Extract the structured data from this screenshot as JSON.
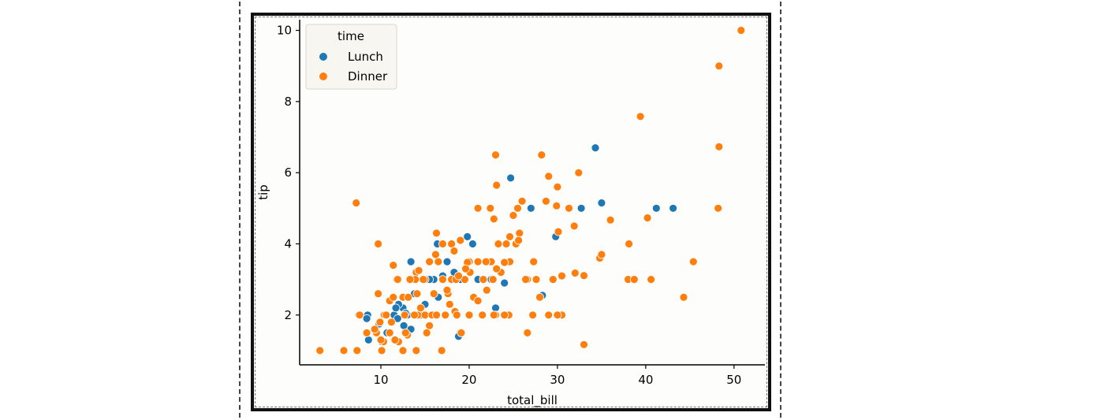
{
  "chart_data": {
    "type": "scatter",
    "xlabel": "total_bill",
    "ylabel": "tip",
    "xlim": [
      0.8,
      53.5
    ],
    "ylim": [
      0.6,
      10.3
    ],
    "xticks": [
      "10",
      "20",
      "30",
      "40",
      "50"
    ],
    "yticks": [
      "2",
      "4",
      "6",
      "8",
      "10"
    ],
    "grid": false,
    "legend": {
      "title": "time",
      "placement": "top-left",
      "entries": [
        "Lunch",
        "Dinner"
      ]
    },
    "series": [
      {
        "name": "Lunch",
        "color": "#1f77b4",
        "points": [
          [
            34.3,
            6.7
          ],
          [
            24.7,
            5.85
          ],
          [
            27.0,
            5.0
          ],
          [
            32.7,
            5.0
          ],
          [
            35.0,
            5.15
          ],
          [
            41.2,
            5.0
          ],
          [
            43.1,
            5.0
          ],
          [
            29.8,
            4.2
          ],
          [
            19.8,
            4.2
          ],
          [
            20.4,
            4.0
          ],
          [
            16.4,
            4.0
          ],
          [
            18.0,
            4.0
          ],
          [
            16.0,
            3.0
          ],
          [
            17.5,
            3.5
          ],
          [
            18.3,
            3.2
          ],
          [
            13.4,
            3.5
          ],
          [
            19.0,
            3.0
          ],
          [
            21.0,
            3.0
          ],
          [
            22.5,
            3.0
          ],
          [
            24.0,
            2.9
          ],
          [
            28.3,
            2.55
          ],
          [
            23.0,
            2.2
          ],
          [
            16.5,
            2.5
          ],
          [
            14.5,
            2.0
          ],
          [
            13.0,
            2.0
          ],
          [
            12.5,
            2.2
          ],
          [
            12.0,
            2.3
          ],
          [
            11.5,
            2.0
          ],
          [
            10.3,
            2.0
          ],
          [
            8.5,
            2.0
          ],
          [
            9.8,
            1.75
          ],
          [
            10.7,
            1.5
          ],
          [
            12.6,
            1.7
          ],
          [
            11.9,
            1.9
          ],
          [
            13.4,
            1.6
          ],
          [
            8.6,
            1.3
          ],
          [
            9.5,
            1.5
          ],
          [
            8.4,
            1.9
          ],
          [
            19.0,
            1.5
          ],
          [
            18.8,
            1.4
          ],
          [
            7.5,
            2.0
          ],
          [
            10.1,
            1.25
          ],
          [
            15.5,
            3.0
          ],
          [
            17.0,
            3.1
          ],
          [
            15.0,
            2.3
          ],
          [
            14.0,
            2.0
          ],
          [
            11.7,
            2.2
          ],
          [
            12.8,
            2.05
          ],
          [
            13.8,
            2.6
          ]
        ]
      },
      {
        "name": "Dinner",
        "color": "#ff7f0e",
        "points": [
          [
            50.8,
            10.0
          ],
          [
            48.3,
            9.0
          ],
          [
            39.4,
            7.58
          ],
          [
            48.3,
            6.73
          ],
          [
            23.0,
            6.5
          ],
          [
            28.2,
            6.5
          ],
          [
            29.0,
            5.9
          ],
          [
            32.4,
            6.0
          ],
          [
            23.1,
            5.65
          ],
          [
            30.0,
            5.6
          ],
          [
            7.2,
            5.15
          ],
          [
            26.0,
            5.2
          ],
          [
            25.5,
            5.0
          ],
          [
            21.0,
            5.0
          ],
          [
            22.4,
            5.0
          ],
          [
            29.9,
            5.07
          ],
          [
            31.3,
            5.0
          ],
          [
            36.0,
            4.67
          ],
          [
            40.2,
            4.73
          ],
          [
            48.2,
            5.0
          ],
          [
            30.1,
            4.34
          ],
          [
            31.9,
            4.5
          ],
          [
            34.8,
            3.6
          ],
          [
            35.0,
            3.7
          ],
          [
            32.0,
            3.18
          ],
          [
            38.1,
            4.0
          ],
          [
            45.4,
            3.5
          ],
          [
            38.0,
            3.0
          ],
          [
            38.7,
            3.0
          ],
          [
            40.6,
            3.0
          ],
          [
            44.3,
            2.5
          ],
          [
            33.0,
            3.11
          ],
          [
            33.0,
            1.17
          ],
          [
            30.5,
            2.0
          ],
          [
            30.0,
            2.0
          ],
          [
            26.6,
            1.5
          ],
          [
            29.0,
            2.0
          ],
          [
            28.0,
            2.5
          ],
          [
            27.2,
            2.0
          ],
          [
            24.5,
            2.0
          ],
          [
            24.0,
            2.0
          ],
          [
            23.0,
            2.0
          ],
          [
            22.8,
            2.0
          ],
          [
            20.0,
            2.0
          ],
          [
            25.7,
            4.3
          ],
          [
            25.3,
            4.0
          ],
          [
            27.3,
            3.5
          ],
          [
            24.6,
            3.5
          ],
          [
            24.0,
            3.48
          ],
          [
            23.6,
            3.2
          ],
          [
            22.5,
            3.5
          ],
          [
            21.0,
            3.5
          ],
          [
            20.0,
            3.5
          ],
          [
            22.8,
            4.7
          ],
          [
            24.2,
            4.0
          ],
          [
            25.0,
            4.8
          ],
          [
            18.0,
            4.0
          ],
          [
            17.0,
            4.0
          ],
          [
            19.0,
            4.1
          ],
          [
            16.3,
            4.3
          ],
          [
            18.3,
            3.8
          ],
          [
            15.0,
            3.0
          ],
          [
            15.5,
            3.5
          ],
          [
            14.0,
            3.2
          ],
          [
            14.8,
            3.0
          ],
          [
            16.5,
            3.5
          ],
          [
            17.0,
            3.0
          ],
          [
            18.0,
            3.0
          ],
          [
            18.5,
            3.0
          ],
          [
            19.5,
            3.0
          ],
          [
            19.8,
            3.48
          ],
          [
            20.5,
            2.5
          ],
          [
            21.0,
            2.4
          ],
          [
            22.0,
            2.7
          ],
          [
            21.5,
            2.0
          ],
          [
            20.1,
            3.2
          ],
          [
            22.7,
            3.0
          ],
          [
            23.1,
            3.3
          ],
          [
            26.6,
            3.0
          ],
          [
            27.6,
            3.0
          ],
          [
            29.5,
            3.0
          ],
          [
            30.5,
            3.1
          ],
          [
            16.9,
            1.0
          ],
          [
            19.1,
            1.5
          ],
          [
            15.5,
            1.7
          ],
          [
            14.2,
            2.0
          ],
          [
            13.0,
            1.44
          ],
          [
            12.0,
            1.25
          ],
          [
            10.3,
            1.25
          ],
          [
            9.5,
            1.5
          ],
          [
            10.0,
            1.3
          ],
          [
            11.0,
            1.5
          ],
          [
            11.6,
            1.3
          ],
          [
            12.8,
            1.5
          ],
          [
            10.1,
            1.0
          ],
          [
            12.5,
            1.0
          ],
          [
            14.0,
            1.0
          ],
          [
            3.1,
            1.0
          ],
          [
            5.8,
            1.0
          ],
          [
            7.3,
            1.0
          ],
          [
            9.9,
            1.8
          ],
          [
            10.4,
            2.0
          ],
          [
            11.0,
            2.4
          ],
          [
            11.4,
            2.5
          ],
          [
            11.8,
            3.0
          ],
          [
            12.5,
            2.5
          ],
          [
            13.1,
            2.5
          ],
          [
            13.8,
            2.0
          ],
          [
            14.1,
            2.6
          ],
          [
            14.5,
            2.2
          ],
          [
            15.0,
            2.0
          ],
          [
            15.2,
            1.5
          ],
          [
            15.8,
            2.0
          ],
          [
            16.0,
            2.6
          ],
          [
            16.3,
            2.0
          ],
          [
            17.3,
            2.0
          ],
          [
            17.6,
            2.6
          ],
          [
            17.8,
            2.3
          ],
          [
            18.4,
            2.1
          ],
          [
            18.6,
            2.0
          ],
          [
            9.7,
            4.0
          ],
          [
            11.4,
            3.4
          ],
          [
            13.9,
            3.0
          ],
          [
            13.3,
            3.0
          ],
          [
            12.7,
            2.0
          ],
          [
            10.6,
            2.0
          ],
          [
            11.2,
            1.8
          ],
          [
            9.3,
            1.6
          ],
          [
            8.4,
            1.5
          ],
          [
            7.6,
            2.0
          ],
          [
            9.7,
            2.6
          ],
          [
            11.9,
            3.0
          ],
          [
            14.3,
            3.25
          ],
          [
            16.2,
            3.7
          ],
          [
            17.5,
            2.7
          ],
          [
            18.8,
            3.1
          ],
          [
            19.6,
            3.3
          ],
          [
            21.6,
            3.0
          ],
          [
            23.3,
            4.0
          ],
          [
            24.6,
            4.2
          ],
          [
            25.6,
            4.1
          ],
          [
            28.7,
            5.2
          ],
          [
            26.4,
            3.0
          ],
          [
            21.9,
            3.5
          ]
        ]
      }
    ]
  }
}
